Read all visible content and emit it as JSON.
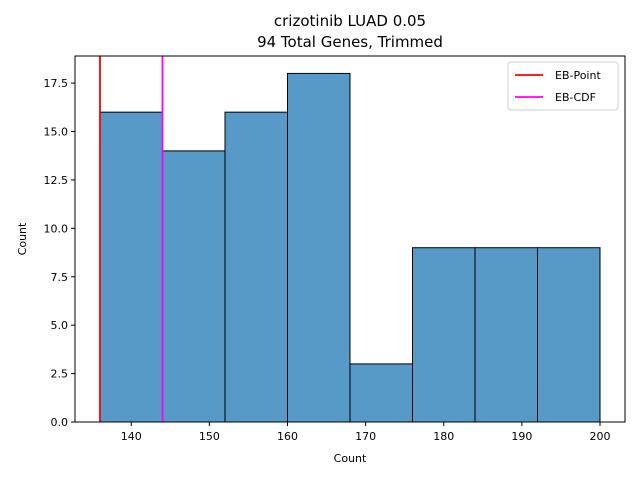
{
  "chart_data": {
    "type": "bar",
    "title": "crizotinib LUAD 0.05",
    "subtitle": "94 Total Genes, Trimmed",
    "xlabel": "Count",
    "ylabel": "Count",
    "xlim": [
      132.8,
      203.2
    ],
    "ylim": [
      0,
      18.9
    ],
    "x_ticks": [
      140,
      150,
      160,
      170,
      180,
      190,
      200
    ],
    "y_ticks": [
      0.0,
      2.5,
      5.0,
      7.5,
      10.0,
      12.5,
      15.0,
      17.5
    ],
    "bins": [
      {
        "start": 136,
        "end": 144,
        "count": 16
      },
      {
        "start": 144,
        "end": 152,
        "count": 14
      },
      {
        "start": 152,
        "end": 160,
        "count": 16
      },
      {
        "start": 160,
        "end": 168,
        "count": 18
      },
      {
        "start": 168,
        "end": 176,
        "count": 3
      },
      {
        "start": 176,
        "end": 184,
        "count": 9
      },
      {
        "start": 184,
        "end": 192,
        "count": 9
      },
      {
        "start": 192,
        "end": 200,
        "count": 9
      }
    ],
    "bar_color": "#5799c7",
    "lines": [
      {
        "name": "EB-Point",
        "x": 136,
        "color": "#ff0000"
      },
      {
        "name": "EB-CDF",
        "x": 144,
        "color": "#ff00ff"
      }
    ],
    "grid": false,
    "legend": "top-right"
  }
}
